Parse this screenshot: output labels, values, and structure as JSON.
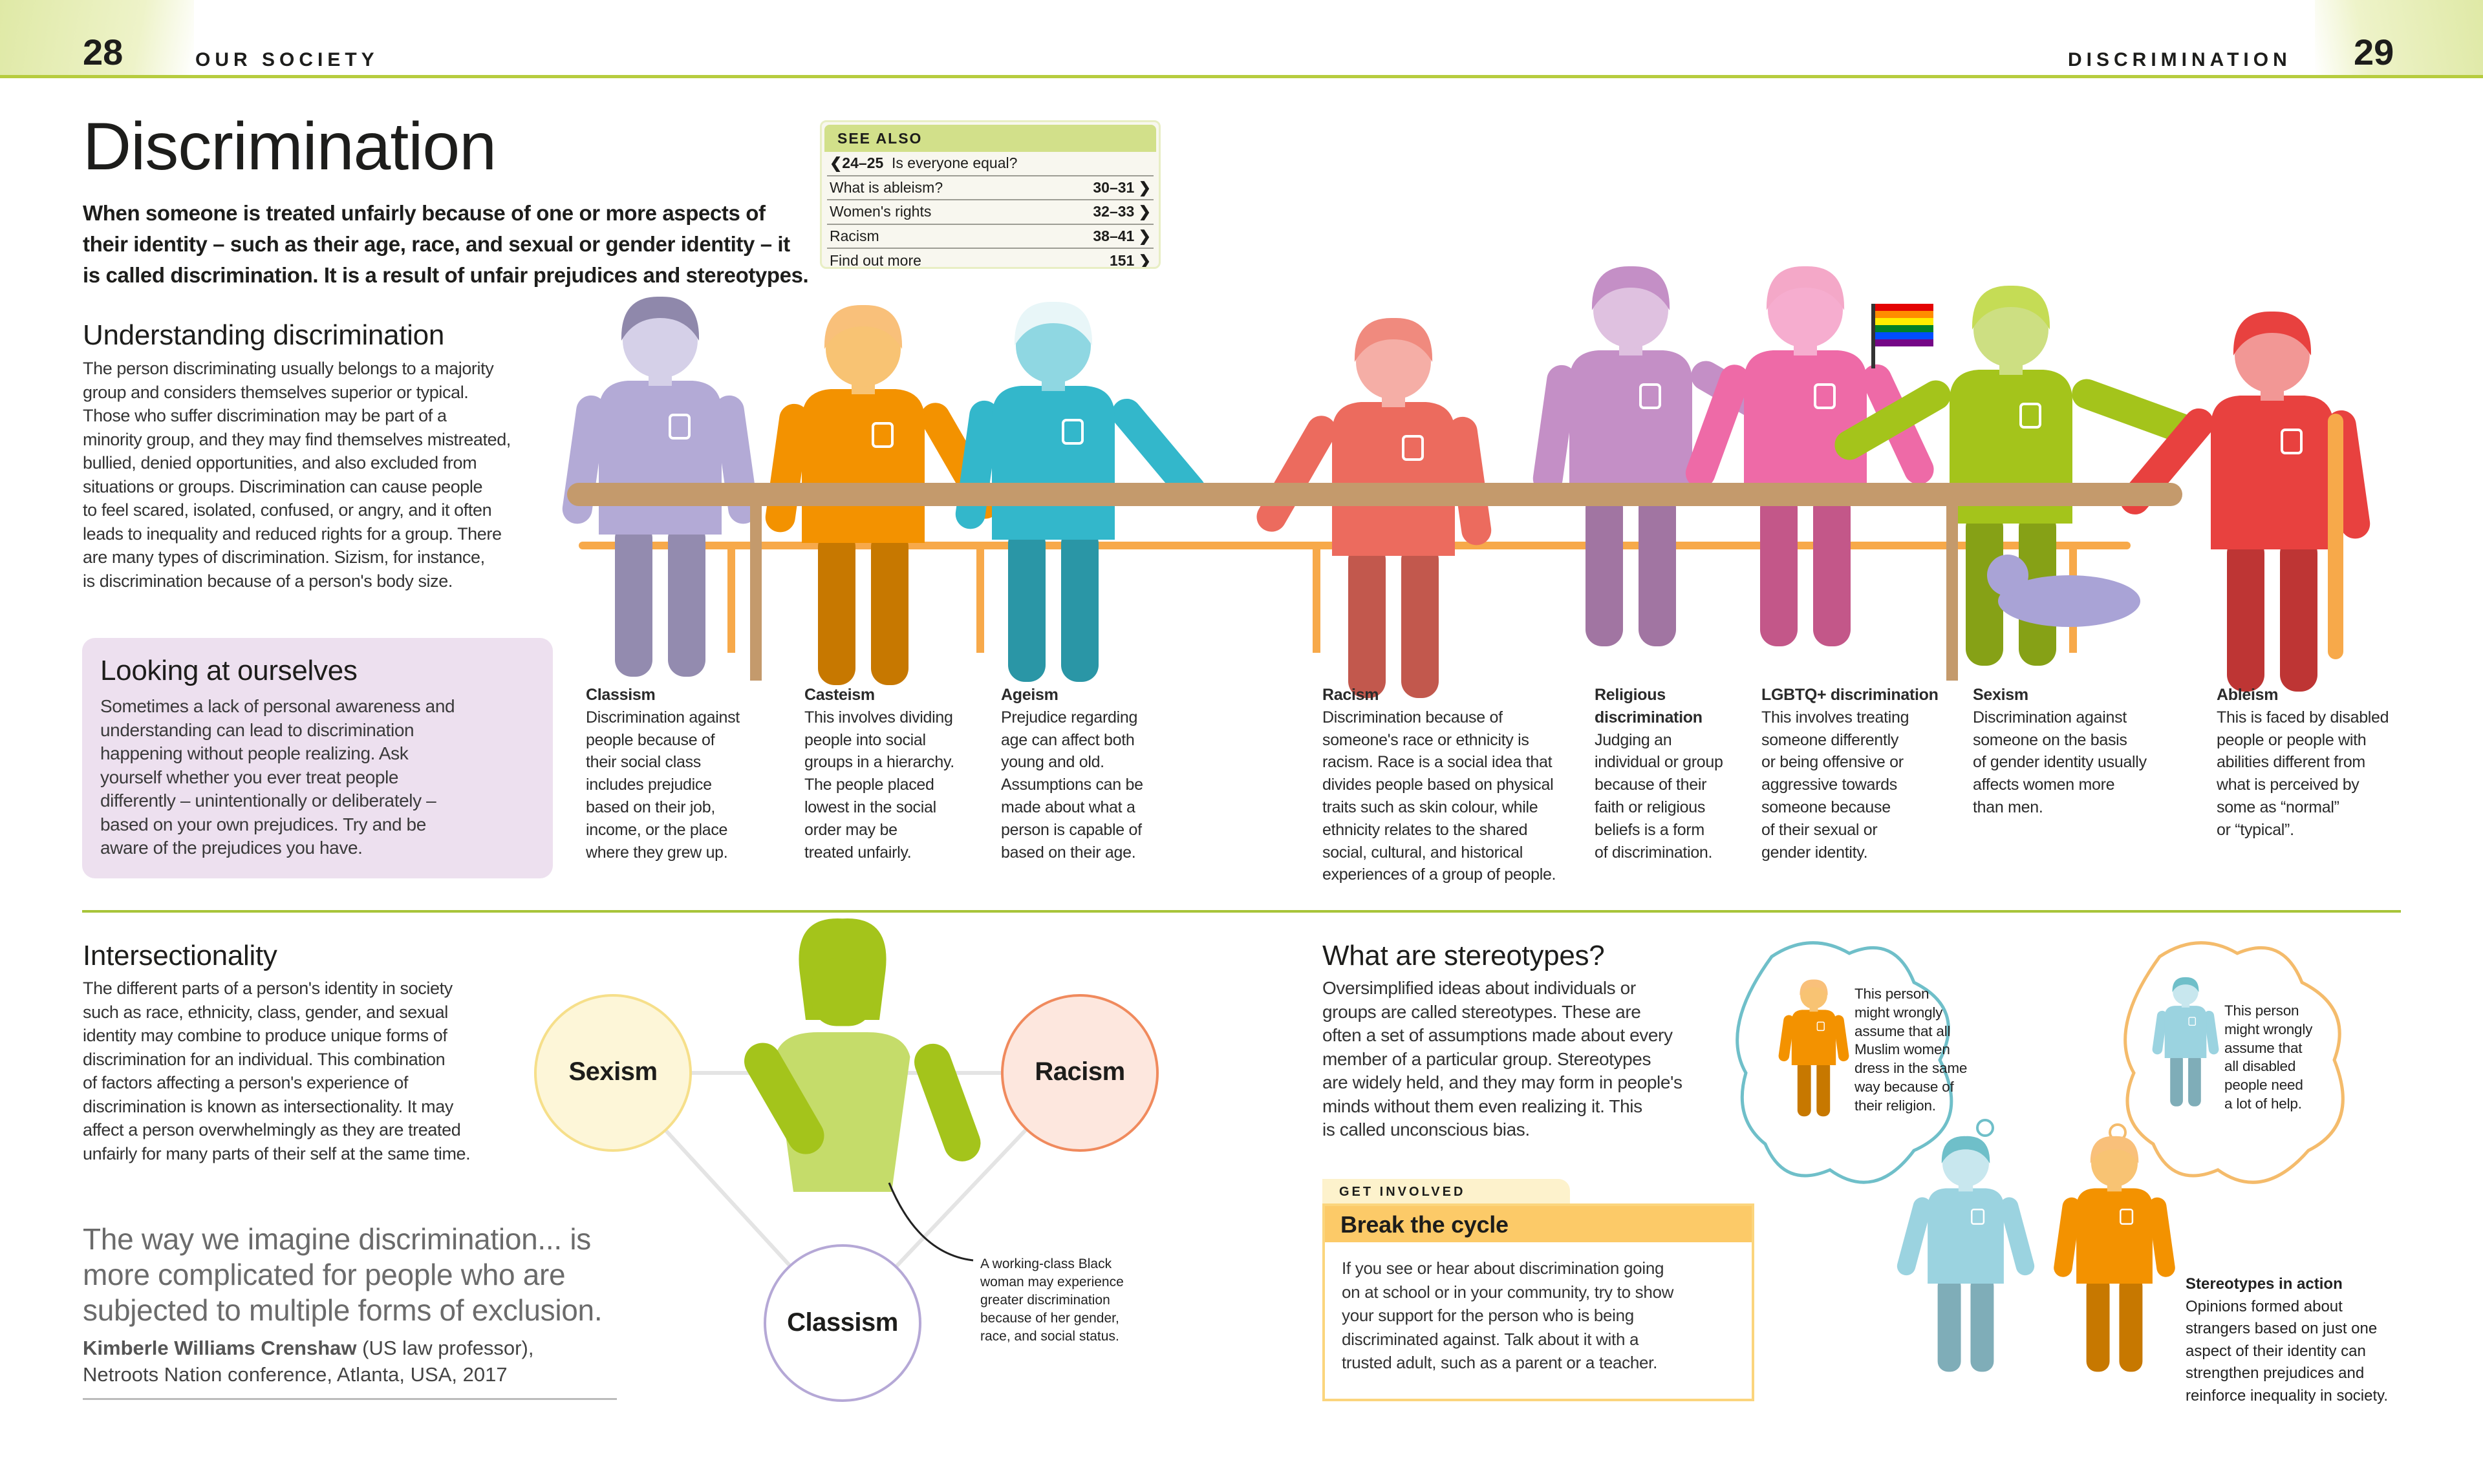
{
  "header": {
    "left_page_number": "28",
    "left_running_head": "OUR SOCIETY",
    "right_running_head": "DISCRIMINATION",
    "right_page_number": "29"
  },
  "title": "Discrimination",
  "intro": "When someone is treated unfairly because of one or more aspects of\ntheir identity – such as their age, race, and sexual or gender identity – it\nis called discrimination. It is a result of unfair prejudices and stereotypes.",
  "see_also": {
    "heading": "SEE ALSO",
    "items": [
      {
        "pages": "24–25",
        "label": "Is everyone equal?",
        "direction": "back",
        "arrow": "❮"
      },
      {
        "pages": "30–31",
        "label": "What is ableism?",
        "direction": "forward",
        "arrow": "❯"
      },
      {
        "pages": "32–33",
        "label": "Women's rights",
        "direction": "forward",
        "arrow": "❯"
      },
      {
        "pages": "38–41",
        "label": "Racism",
        "direction": "forward",
        "arrow": "❯"
      },
      {
        "pages": "151",
        "label": "Find out more",
        "direction": "forward",
        "arrow": "❯"
      }
    ]
  },
  "understanding": {
    "heading": "Understanding discrimination",
    "body": "The person discriminating usually belongs to a majority\ngroup and considers themselves superior or typical.\nThose who suffer discrimination may be part of a\nminority group, and they may find themselves mistreated,\nbullied, denied opportunities, and also excluded from\nsituations or groups. Discrimination can cause people\nto feel scared, isolated, confused, or angry, and it often\nleads to inequality and reduced rights for a group. There\nare many types of discrimination. Sizism, for instance,\nis discrimination because of a person's body size."
  },
  "looking": {
    "heading": "Looking at ourselves",
    "body": "Sometimes a lack of personal awareness and\nunderstanding can lead to discrimination\nhappening without people realizing. Ask\nyourself whether you ever treat people\ndifferently – unintentionally or deliberately –\nbased on your own prejudices. Try and be\naware of the prejudices you have."
  },
  "types": [
    {
      "name": "Classism",
      "text": "Discrimination against\npeople because of\ntheir social class\nincludes prejudice\nbased on their job,\nincome, or the place\nwhere they grew up.",
      "color": "#b3aad6"
    },
    {
      "name": "Casteism",
      "text": "This involves dividing\npeople into social\ngroups in a hierarchy.\nThe people placed\nlowest in the social\norder may be\ntreated unfairly.",
      "color": "#f39200"
    },
    {
      "name": "Ageism",
      "text": "Prejudice regarding\nage can affect both\nyoung and old.\nAssumptions can be\nmade about what a\nperson is capable of\nbased on their age.",
      "color": "#33b7cb"
    },
    {
      "name": "Racism",
      "text": "Discrimination because of\nsomeone's race or ethnicity is\nracism. Race is a social idea that\ndivides people based on physical\ntraits such as skin colour, while\nethnicity relates to the shared\nsocial, cultural, and historical\nexperiences of a group of people.",
      "color": "#ec6b5e"
    },
    {
      "name": "Religious\ndiscrimination",
      "text": "Judging an\nindividual or group\nbecause of their\nfaith or religious\nbeliefs is a form\nof discrimination.",
      "color": "#c48fc6"
    },
    {
      "name": "LGBTQ+ discrimination",
      "text": "This involves treating\nsomeone differently\nor being offensive or\naggressive towards\nsomeone because\nof their sexual or\ngender identity.",
      "color": "#ee6aa7"
    },
    {
      "name": "Sexism",
      "text": "Discrimination against\nsomeone on the basis\nof gender identity usually\naffects women more\nthan men.",
      "color": "#a4c41b"
    },
    {
      "name": "Ableism",
      "text": "This is faced by disabled\npeople or people with\nabilities different from\nwhat is perceived by\nsome as “normal”\nor “typical”.",
      "color": "#e8413f"
    }
  ],
  "intersectionality": {
    "heading": "Intersectionality",
    "body": "The different parts of a person's identity in society\nsuch as race, ethnicity, class, gender, and sexual\nidentity may combine to produce unique forms of\ndiscrimination for an individual. This combination\nof factors affecting a person's experience of\ndiscrimination is known as intersectionality. It may\naffect a person overwhelmingly as they are treated\nunfairly for many parts of their self at the same time.",
    "circles": [
      {
        "label": "Sexism",
        "fill": "#fdf6d8",
        "stroke": "#f6df8a"
      },
      {
        "label": "Racism",
        "fill": "#fde7de",
        "stroke": "#f08a5d"
      },
      {
        "label": "Classism",
        "fill": "#ffffff",
        "stroke": "#b5a8d6"
      }
    ],
    "annotation": "A working-class Black\nwoman may experience\ngreater discrimination\nbecause of her gender,\nrace, and social status."
  },
  "quote": {
    "text": "The way we imagine discrimination... is\nmore complicated for people who are\nsubjected to multiple forms of exclusion.",
    "author": "Kimberle Williams Crenshaw",
    "author_detail": " (US law professor),",
    "source": "Netroots Nation conference, Atlanta, USA, 2017"
  },
  "stereotypes": {
    "heading": "What are stereotypes?",
    "body": "Oversimplified ideas about individuals or\ngroups are called stereotypes. These are\noften a set of assumptions made about every\nmember of a particular group. Stereotypes\nare widely held, and they may form in people's\nminds without them even realizing it. This\nis called unconscious bias.",
    "bubble_left": "This person\nmight wrongly\nassume that all\nMuslim women\ndress in the same\nway because of\ntheir religion.",
    "bubble_right": "This person\nmight wrongly\nassume that\nall disabled\npeople need\na lot of help.",
    "in_action_title": "Stereotypes in action",
    "in_action_body": "Opinions formed about\nstrangers based on just one\naspect of their identity can\nstrengthen prejudices and\nreinforce inequality in society."
  },
  "get_involved": {
    "tab": "GET INVOLVED",
    "title": "Break the cycle",
    "body": "If you see or hear about discrimination going\non at school or in your community, try to show\nyour support for the person who is being\ndiscriminated against. Talk about it with a\ntrusted adult, such as a parent or a teacher."
  },
  "colors": {
    "accent_green": "#a8c43a",
    "table_brown": "#c49a6c",
    "bench_orange": "#f7a94a"
  }
}
